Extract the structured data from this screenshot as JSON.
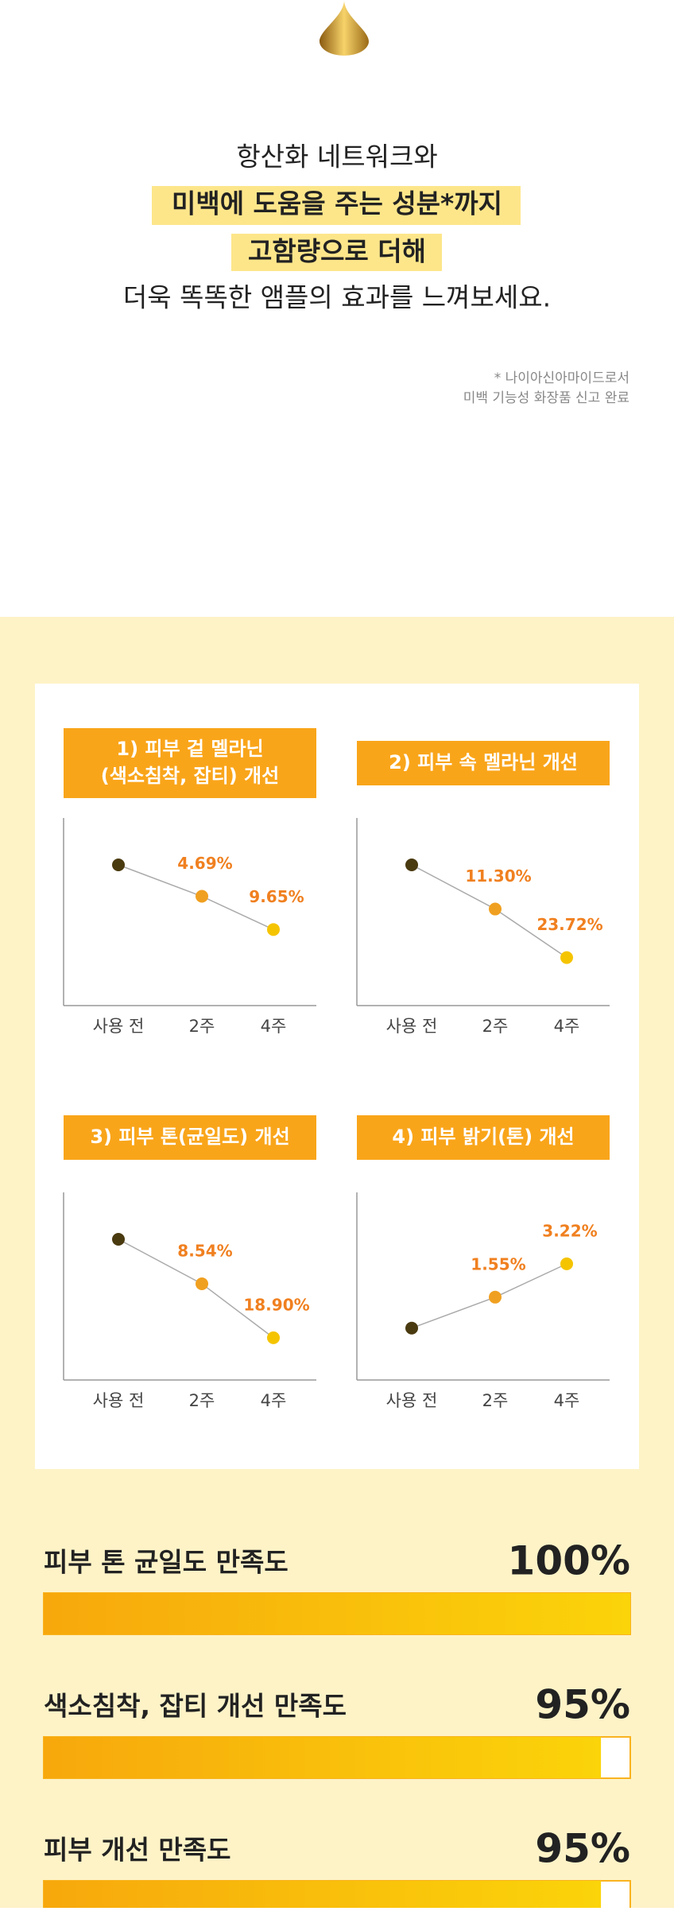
{
  "intro": {
    "lines": [
      "항산화 네트워크와",
      "미백에 도움을 주는 성분*까지",
      "고함량으로 더해",
      "더욱 똑똑한 앰플의 효과를 느껴보세요."
    ],
    "note": [
      "* 나이아신아마이드로서",
      "미백 기능성 화장품 신고 완료"
    ]
  },
  "charts": [
    {
      "type": "line",
      "title": "1) 피부 겉 멜라닌\n(색소침착, 잡티) 개선",
      "categories": [
        "사용 전",
        "2주",
        "4주"
      ],
      "values": [
        0,
        4.69,
        9.65
      ],
      "value_labels": [
        null,
        "4.69%",
        "9.65%"
      ],
      "ylim": [
        21,
        -7
      ]
    },
    {
      "type": "line",
      "title": "2) 피부 속 멜라닌 개선",
      "categories": [
        "사용 전",
        "2주",
        "4주"
      ],
      "values": [
        0,
        11.3,
        23.72
      ],
      "value_labels": [
        null,
        "11.30%",
        "23.72%"
      ],
      "ylim": [
        36,
        -12
      ]
    },
    {
      "type": "line",
      "title": "3) 피부 톤(균일도) 개선",
      "categories": [
        "사용 전",
        "2주",
        "4주"
      ],
      "values": [
        0,
        8.54,
        18.9
      ],
      "value_labels": [
        null,
        "8.54%",
        "18.90%"
      ],
      "ylim": [
        27,
        -9
      ]
    },
    {
      "type": "line",
      "title": "4) 피부 밝기(톤) 개선",
      "categories": [
        "사용 전",
        "2주",
        "4주"
      ],
      "values": [
        0,
        1.55,
        3.22
      ],
      "value_labels": [
        null,
        "1.55%",
        "3.22%"
      ],
      "ylim": [
        -2.6,
        6.8
      ]
    }
  ],
  "satisfaction": {
    "xlim": [
      0,
      100
    ],
    "items": [
      {
        "label": "피부 톤 균일도 만족도",
        "value": 100,
        "value_label": "100%"
      },
      {
        "label": "색소침착, 잡티 개선 만족도",
        "value": 95,
        "value_label": "95%"
      },
      {
        "label": "피부 개선 만족도",
        "value": 95,
        "value_label": "95%"
      }
    ]
  }
}
